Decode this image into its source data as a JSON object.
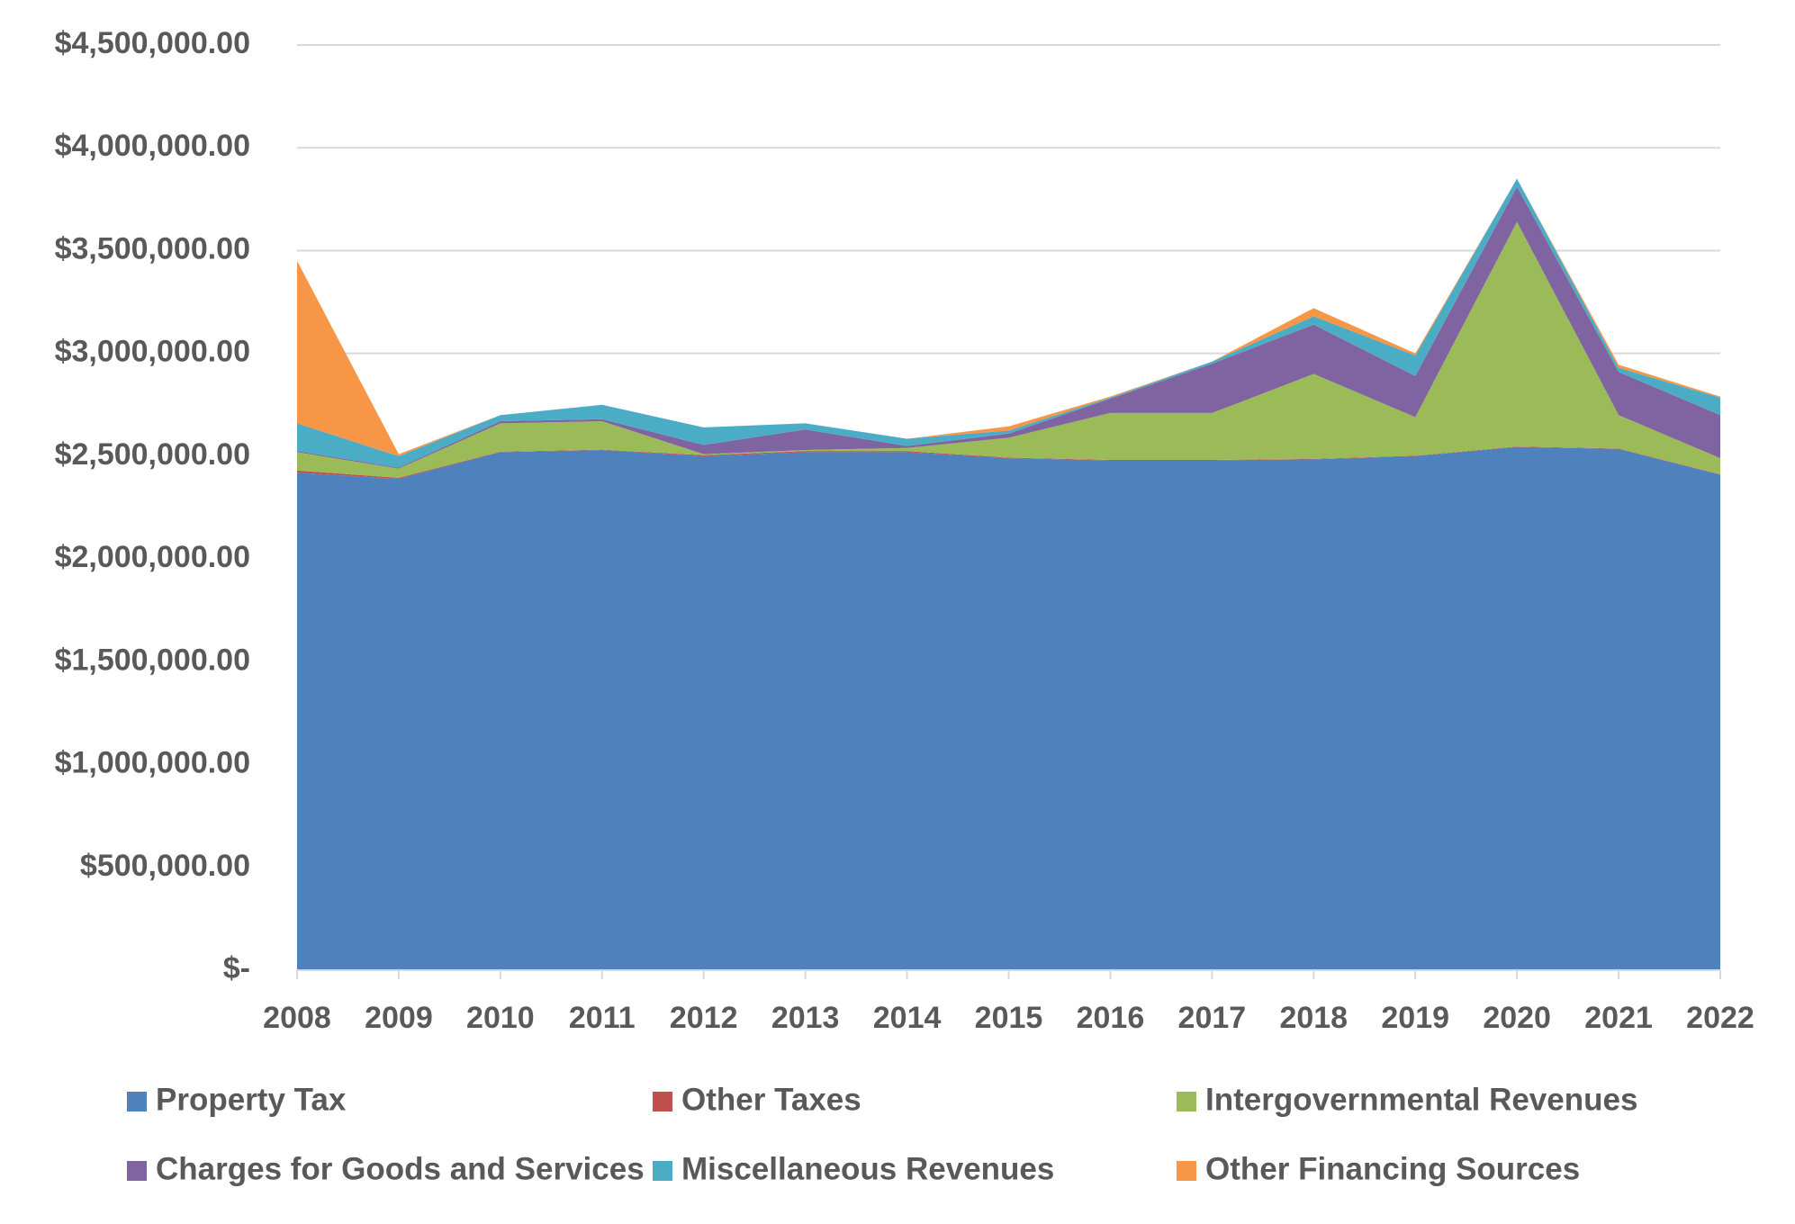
{
  "chart_data": {
    "type": "stacked_area",
    "categories": [
      "2008",
      "2009",
      "2010",
      "2011",
      "2012",
      "2013",
      "2014",
      "2015",
      "2016",
      "2017",
      "2018",
      "2019",
      "2020",
      "2021",
      "2022"
    ],
    "series": [
      {
        "name": "Property Tax",
        "color": "#4f81bd",
        "values": [
          2420000,
          2390000,
          2520000,
          2530000,
          2500000,
          2520000,
          2520000,
          2490000,
          2480000,
          2480000,
          2485000,
          2500000,
          2545000,
          2535000,
          2410000
        ]
      },
      {
        "name": "Other Taxes",
        "color": "#c0504d",
        "values": [
          10000,
          5000,
          2000,
          2000,
          5000,
          5000,
          5000,
          3000,
          2000,
          2000,
          2000,
          2000,
          2000,
          2000,
          2000
        ]
      },
      {
        "name": "Intergovernmental Revenues",
        "color": "#9bbb59",
        "values": [
          90000,
          45000,
          138000,
          138000,
          5000,
          5000,
          15000,
          97000,
          228000,
          228000,
          413000,
          188000,
          1093000,
          163000,
          78000
        ]
      },
      {
        "name": "Charges for Goods and Services",
        "color": "#8064a2",
        "values": [
          5000,
          5000,
          10000,
          10000,
          45000,
          100000,
          10000,
          20000,
          70000,
          240000,
          240000,
          200000,
          170000,
          210000,
          210000
        ]
      },
      {
        "name": "Miscellaneous Revenues",
        "color": "#4bacc6",
        "values": [
          135000,
          55000,
          30000,
          70000,
          85000,
          30000,
          35000,
          15000,
          5000,
          10000,
          40000,
          100000,
          40000,
          20000,
          85000
        ]
      },
      {
        "name": "Other Financing Sources",
        "color": "#f79646",
        "values": [
          790000,
          10000,
          0,
          0,
          0,
          0,
          0,
          20000,
          5000,
          0,
          40000,
          10000,
          0,
          15000,
          5000
        ]
      }
    ],
    "ylim": [
      0,
      4500000
    ],
    "yticks": [
      {
        "value": 0,
        "label": "$-"
      },
      {
        "value": 500000,
        "label": "$500,000.00"
      },
      {
        "value": 1000000,
        "label": "$1,000,000.00"
      },
      {
        "value": 1500000,
        "label": "$1,500,000.00"
      },
      {
        "value": 2000000,
        "label": "$2,000,000.00"
      },
      {
        "value": 2500000,
        "label": "$2,500,000.00"
      },
      {
        "value": 3000000,
        "label": "$3,000,000.00"
      },
      {
        "value": 3500000,
        "label": "$3,500,000.00"
      },
      {
        "value": 4000000,
        "label": "$4,000,000.00"
      },
      {
        "value": 4500000,
        "label": "$4,500,000.00"
      }
    ],
    "grid": true,
    "legend": "bottom"
  }
}
